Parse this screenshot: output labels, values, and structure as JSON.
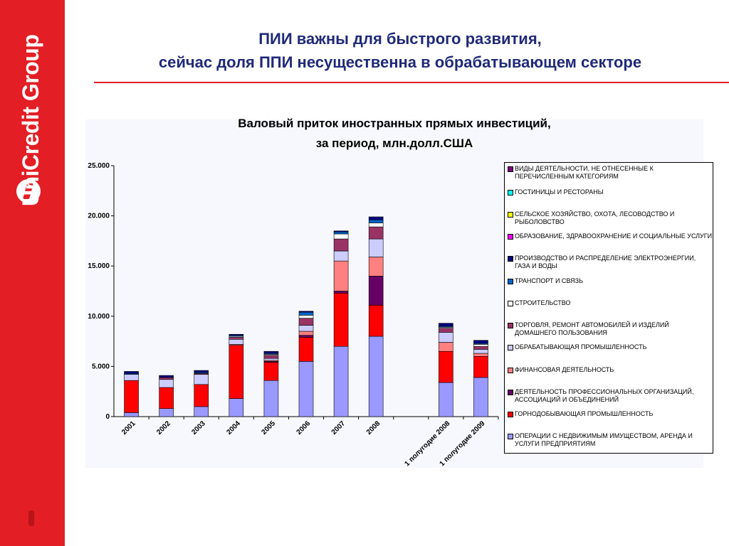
{
  "brand": {
    "logo_text": "UniCredit Group"
  },
  "title": {
    "line1": "ПИИ важны для быстрого развития,",
    "line2": "сейчас доля ППИ несущественна в обрабатывающем секторе"
  },
  "colors": {
    "brand_red": "#e31e24",
    "title_blue": "#1f2a7a"
  },
  "chart_data": {
    "type": "bar",
    "stacked": true,
    "title": "Валовый приток иностранных прямых инвестиций,",
    "subtitle": "за период, млн.долл.США",
    "categories": [
      "2001",
      "2002",
      "2003",
      "2004",
      "2005",
      "2006",
      "2007",
      "2008",
      "",
      "1 полугодие 2008",
      "1 полугодие 2009"
    ],
    "ylim": [
      0,
      25000
    ],
    "yticks": [
      0,
      5000,
      10000,
      15000,
      20000,
      25000
    ],
    "ytick_labels": [
      "0",
      "5.000",
      "10.000",
      "15.000",
      "20.000",
      "25.000"
    ],
    "legend_position": "right",
    "grid": false,
    "series": [
      {
        "name": "ОПЕРАЦИИ С НЕДВИЖИМЫМ ИМУЩЕСТВОМ, АРЕНДА И УСЛУГИ ПРЕДПРИЯТИЯМ",
        "color": "#9999ff",
        "values": [
          400,
          800,
          1000,
          1800,
          3600,
          5500,
          7000,
          8000,
          null,
          3400,
          3900
        ]
      },
      {
        "name": "ГОРНОДОБЫВАЮЩАЯ ПРОМЫШЛЕННОСТЬ",
        "color": "#ff0000",
        "values": [
          3200,
          2100,
          2200,
          5300,
          1800,
          2400,
          5300,
          3100,
          null,
          3100,
          2100
        ]
      },
      {
        "name": "ДЕЯТЕЛЬНОСТЬ ПРОФЕССИОНАЛЬНЫХ ОРГАНИЗАЦИЙ, АССОЦИАЦИЙ И ОБЪЕДИНЕНИЙ",
        "color": "#660066",
        "values": [
          0,
          0,
          0,
          0,
          100,
          200,
          200,
          2900,
          null,
          0,
          0
        ]
      },
      {
        "name": "ФИНАНСОВАЯ ДЕЯТЕЛЬНОСТЬ",
        "color": "#ff8080",
        "values": [
          0,
          0,
          0,
          100,
          100,
          400,
          3000,
          1900,
          null,
          900,
          300
        ]
      },
      {
        "name": "ОБРАБАТЫВАЮЩАЯ ПРОМЫШЛЕННОСТЬ",
        "color": "#ccccff",
        "values": [
          600,
          800,
          1000,
          500,
          200,
          600,
          1000,
          1800,
          null,
          1000,
          400
        ]
      },
      {
        "name": "ТОРГОВЛЯ, РЕМОНТ АВТОМОБИЛЕЙ И ИЗДЕЛИЙ ДОМАШНЕГО ПОЛЬЗОВАНИЯ",
        "color": "#993366",
        "values": [
          0,
          200,
          100,
          200,
          300,
          700,
          1200,
          1200,
          null,
          400,
          300
        ]
      },
      {
        "name": "СТРОИТЕЛЬСТВО",
        "color": "#ffffff",
        "values": [
          0,
          0,
          0,
          100,
          100,
          300,
          500,
          400,
          null,
          100,
          200
        ]
      },
      {
        "name": "ТРАНСПОРТ И СВЯЗЬ",
        "color": "#0066cc",
        "values": [
          100,
          0,
          100,
          100,
          100,
          300,
          200,
          300,
          null,
          100,
          100
        ]
      },
      {
        "name": "ПРОИЗВОДСТВО И РАСПРЕДЕЛЕНИЕ ЭЛЕКТРОЭНЕРГИИ, ГАЗА И ВОДЫ",
        "color": "#000080",
        "values": [
          200,
          200,
          200,
          100,
          200,
          100,
          100,
          300,
          null,
          300,
          300
        ]
      },
      {
        "name": "ОБРАЗОВАНИЕ, ЗДРАВООХРАНЕНИЕ И СОЦИАЛЬНЫЕ УСЛУГИ",
        "color": "#ff00ff",
        "values": [
          0,
          0,
          0,
          0,
          0,
          0,
          0,
          0,
          null,
          0,
          0
        ]
      },
      {
        "name": "СЕЛЬСКОЕ ХОЗЯЙСТВО, ОХОТА, ЛЕСОВОДСТВО И РЫБОЛОВСТВО",
        "color": "#ffff00",
        "values": [
          0,
          0,
          0,
          0,
          0,
          0,
          0,
          0,
          null,
          0,
          0
        ]
      },
      {
        "name": "ГОСТИНИЦЫ И РЕСТОРАНЫ",
        "color": "#00ffff",
        "values": [
          0,
          0,
          0,
          0,
          0,
          0,
          0,
          0,
          null,
          0,
          0
        ]
      },
      {
        "name": "ВИДЫ ДЕЯТЕЛЬНОСТИ, НЕ ОТНЕСЕННЫЕ К ПЕРЕЧИСЛЕННЫМ КАТЕГОРИЯМ",
        "color": "#800080",
        "values": [
          0,
          0,
          0,
          0,
          0,
          0,
          0,
          0,
          null,
          0,
          0
        ]
      }
    ]
  }
}
